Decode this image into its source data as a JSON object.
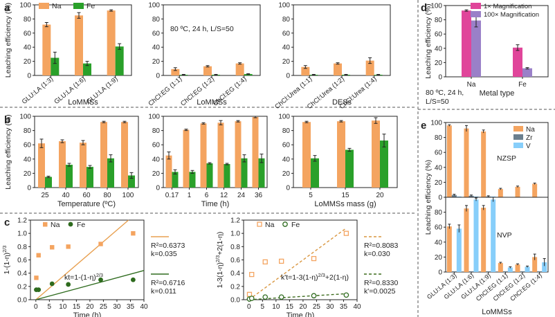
{
  "colors": {
    "na": "#f4a460",
    "fe": "#2aa02a",
    "zr": "#6b7f8e",
    "v": "#87cefa",
    "mag1": "#e0459a",
    "mag100": "#9a80c8",
    "fitNa": "#e8a050",
    "fitFe": "#2e6b1e",
    "fitNaDash": "#d9963f",
    "fitFeDash": "#3a6a1a"
  },
  "chart_data": [
    {
      "panel": "a",
      "id": "a1",
      "type": "bar",
      "ylabel": "Leaching efficiency (%)",
      "ylim": [
        0,
        100
      ],
      "yticks": [
        0,
        20,
        40,
        60,
        80,
        100
      ],
      "categories": [
        "GLU:LA (1:3)",
        "GLU:LA (1:6)",
        "GLU:LA (1:9)"
      ],
      "xgroup": "LoMMSs",
      "series": [
        {
          "name": "Na",
          "values": [
            72,
            85,
            92
          ],
          "err": [
            3,
            4,
            1
          ]
        },
        {
          "name": "Fe",
          "values": [
            25,
            17,
            41
          ],
          "err": [
            8,
            3,
            4
          ]
        }
      ],
      "legend": [
        "Na",
        "Fe"
      ]
    },
    {
      "panel": "a",
      "id": "a2",
      "type": "bar",
      "ylim": [
        0,
        100
      ],
      "yticks": [
        0,
        20,
        40,
        60,
        80,
        100
      ],
      "categories": [
        "ChCl:EG (1:1)",
        "ChCl:EG (1:2)",
        "ChCl:EG (1:4)"
      ],
      "xgroup": "LoMMSs",
      "annotation": "80 ºC, 24 h, L/S=50",
      "series": [
        {
          "name": "Na",
          "values": [
            9,
            13,
            17
          ],
          "err": [
            2,
            1,
            1
          ]
        },
        {
          "name": "Fe",
          "values": [
            1,
            1,
            2
          ],
          "err": [
            0.5,
            0.5,
            0.5
          ]
        }
      ]
    },
    {
      "panel": "a",
      "id": "a3",
      "type": "bar",
      "ylim": [
        0,
        100
      ],
      "yticks": [
        0,
        20,
        40,
        60,
        80,
        100
      ],
      "categories": [
        "ChCl:Urea (1:1)",
        "ChCl:Urea (1:2)",
        "ChCl:Urea (1:4)"
      ],
      "xgroup": "DESs",
      "series": [
        {
          "name": "Na",
          "values": [
            12,
            17,
            21
          ],
          "err": [
            2,
            1,
            4
          ]
        },
        {
          "name": "Fe",
          "values": [
            1,
            1,
            1
          ],
          "err": [
            0.5,
            0.5,
            0.5
          ]
        }
      ]
    },
    {
      "panel": "b",
      "id": "b1",
      "type": "bar",
      "ylabel": "Leaching efficiency (%)",
      "xlabel": "Temperature (ºC)",
      "ylim": [
        0,
        100
      ],
      "yticks": [
        0,
        20,
        40,
        60,
        80,
        100
      ],
      "categories": [
        "25",
        "40",
        "60",
        "80",
        "100"
      ],
      "series": [
        {
          "name": "Na",
          "values": [
            62,
            65,
            63,
            92,
            92
          ],
          "err": [
            6,
            2,
            3,
            1,
            1
          ]
        },
        {
          "name": "Fe",
          "values": [
            15,
            32,
            29,
            41,
            17
          ],
          "err": [
            1,
            2,
            2,
            5,
            4
          ]
        }
      ]
    },
    {
      "panel": "b",
      "id": "b2",
      "type": "bar",
      "xlabel": "Time (h)",
      "ylim": [
        0,
        100
      ],
      "yticks": [
        0,
        20,
        40,
        60,
        80,
        100
      ],
      "categories": [
        "0.17",
        "1",
        "6",
        "12",
        "24",
        "36"
      ],
      "series": [
        {
          "name": "Na",
          "values": [
            45,
            81,
            90,
            91,
            93,
            99
          ],
          "err": [
            5,
            1,
            1,
            3,
            1,
            1
          ]
        },
        {
          "name": "Fe",
          "values": [
            22,
            22,
            34,
            33,
            41,
            41
          ],
          "err": [
            3,
            2,
            1,
            1,
            5,
            6
          ]
        }
      ]
    },
    {
      "panel": "b",
      "id": "b3",
      "type": "bar",
      "xlabel": "LoMMSs mass (g)",
      "ylim": [
        0,
        100
      ],
      "yticks": [
        0,
        20,
        40,
        60,
        80,
        100
      ],
      "categories": [
        "5",
        "15",
        "20"
      ],
      "series": [
        {
          "name": "Na",
          "values": [
            92,
            93,
            94
          ],
          "err": [
            1,
            1,
            4
          ]
        },
        {
          "name": "Fe",
          "values": [
            41,
            53,
            66
          ],
          "err": [
            4,
            2,
            9
          ]
        }
      ]
    },
    {
      "panel": "c",
      "id": "c1",
      "type": "scatter",
      "ylabel": "1-(1-η)^2/3",
      "xlabel": "Time (h)",
      "xlim": [
        -2,
        40
      ],
      "ylim": [
        0,
        1.2
      ],
      "xticks": [
        0,
        5,
        10,
        15,
        20,
        25,
        30,
        35,
        40
      ],
      "yticks": [
        "0.0",
        "0.2",
        "0.4",
        "0.6",
        "0.8",
        "1.0",
        "1.2"
      ],
      "legend": [
        "Na",
        "Fe"
      ],
      "equation": "kt=1-(1-η)^2/3",
      "series": [
        {
          "name": "Na",
          "x": [
            0.17,
            1,
            6,
            12,
            24,
            36
          ],
          "y": [
            0.33,
            0.67,
            0.79,
            0.8,
            0.84,
            1.0
          ],
          "fit": {
            "slope": 0.035,
            "r2": "R²=0.6373",
            "k": "k=0.035"
          }
        },
        {
          "name": "Fe",
          "x": [
            0.17,
            1,
            6,
            12,
            24,
            36
          ],
          "y": [
            0.15,
            0.15,
            0.24,
            0.23,
            0.3,
            0.3
          ],
          "fit": {
            "slope": 0.011,
            "r2": "R²=0.6716",
            "k": "k=0.011"
          }
        }
      ]
    },
    {
      "panel": "c",
      "id": "c2",
      "type": "scatter",
      "ylabel": "1-3(1-η)^2/3+2(1-η)",
      "xlabel": "Time (h)",
      "xlim": [
        -2,
        40
      ],
      "ylim": [
        0,
        1.2
      ],
      "xticks": [
        0,
        5,
        10,
        15,
        20,
        25,
        30,
        35,
        40
      ],
      "yticks": [
        "0.0",
        "0.2",
        "0.4",
        "0.6",
        "0.8",
        "1.0",
        "1.2"
      ],
      "legend": [
        "Na",
        "Fe"
      ],
      "equation": "k't=1-3(1-η)^2/3+2(1-η)",
      "series": [
        {
          "name": "Na",
          "x": [
            0.17,
            1,
            6,
            12,
            24,
            36
          ],
          "y": [
            0.08,
            0.38,
            0.57,
            0.58,
            0.62,
            1.0
          ],
          "fit": {
            "slope": 0.03,
            "r2": "R²=0.8083",
            "k": "k=0.030"
          }
        },
        {
          "name": "Fe",
          "x": [
            0.17,
            1,
            6,
            12,
            24,
            36
          ],
          "y": [
            0.01,
            0.02,
            0.04,
            0.04,
            0.06,
            0.07
          ],
          "fit": {
            "slope": 0.0025,
            "r2": "R²=0.8330",
            "k": "k'=0.0025"
          }
        }
      ]
    },
    {
      "panel": "d",
      "id": "d1",
      "type": "bar",
      "ylabel": "Leaching efficiency (%)",
      "xlabel": "Metal type",
      "ylim": [
        0,
        100
      ],
      "yticks": [
        0,
        20,
        40,
        60,
        80,
        100
      ],
      "categories": [
        "Na",
        "Fe"
      ],
      "annotation": "80 ºC, 24 h, L/S=50",
      "series": [
        {
          "name": "1× Magnification",
          "values": [
            93,
            41
          ],
          "err": [
            1,
            4
          ]
        },
        {
          "name": "100× Magnification",
          "values": [
            79,
            12
          ],
          "err": [
            9,
            1
          ]
        }
      ]
    },
    {
      "panel": "e",
      "id": "e1",
      "type": "bar",
      "ylabel": "Leaching efficiency (%)",
      "xgroup": "LoMMSs",
      "ylim": [
        0,
        100
      ],
      "yticks": [
        0,
        20,
        40,
        60,
        80,
        100
      ],
      "categories": [
        "GLU:LA (1:3)",
        "GLU:LA (1:6)",
        "GLU:LA (1:9)",
        "ChCl:EG (1:1)",
        "ChCl:EG (1:2)",
        "ChCl:EG (1:4)"
      ],
      "subplots": [
        {
          "label": "NZSP",
          "series": [
            {
              "name": "Na",
              "values": [
                96,
                92,
                88,
                11,
                14,
                18
              ],
              "err": [
                1,
                4,
                2,
                1,
                1,
                1
              ]
            },
            {
              "name": "Zr",
              "values": [
                3,
                2,
                1,
                0.5,
                0.5,
                0.5
              ],
              "err": [
                1,
                1,
                1,
                0,
                0,
                0
              ]
            },
            {
              "name": "V",
              "values": [
                1,
                1,
                1,
                0.5,
                0.5,
                0.5
              ],
              "err": [
                0,
                0,
                0,
                0,
                0,
                0
              ]
            }
          ]
        },
        {
          "label": "NVP",
          "series": [
            {
              "name": "Na",
              "values": [
                61,
                85,
                86,
                12,
                10,
                20
              ],
              "err": [
                3,
                4,
                3,
                1,
                1,
                4
              ]
            },
            {
              "name": "Zr",
              "values": [
                1,
                1,
                1,
                1,
                1,
                1
              ],
              "err": [
                0,
                0,
                0,
                0,
                0,
                0
              ]
            },
            {
              "name": "V",
              "values": [
                58,
                97,
                97,
                6,
                7,
                13
              ],
              "err": [
                5,
                2,
                3,
                1,
                1,
                5
              ]
            }
          ]
        }
      ],
      "legend": [
        "Na",
        "Zr",
        "V"
      ]
    }
  ],
  "panel_labels": {
    "a": "a",
    "b": "b",
    "c": "c",
    "d": "d",
    "e": "e"
  }
}
